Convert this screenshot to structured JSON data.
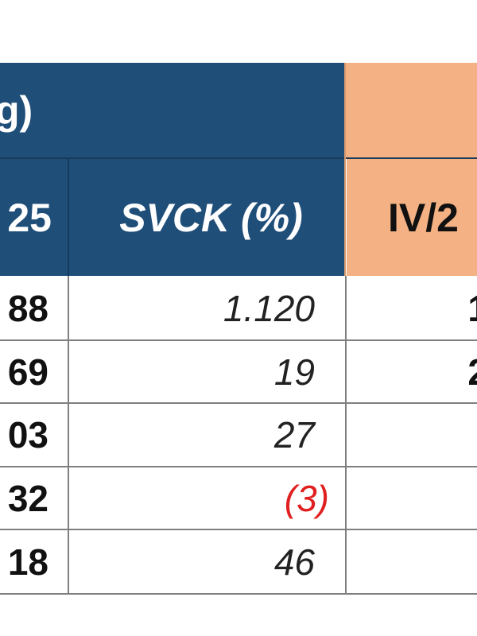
{
  "header": {
    "group_left_partial": "g)",
    "col_left_partial": "25",
    "col_svck": "SVCK (%)",
    "col_right_partial": "IV/2"
  },
  "rows": [
    {
      "left": "88",
      "svck": "1.120",
      "right": "1",
      "negative": false
    },
    {
      "left": "69",
      "svck": "19",
      "right": "2",
      "negative": false
    },
    {
      "left": "03",
      "svck": "27",
      "right": "",
      "negative": false
    },
    {
      "left": "32",
      "svck": "(3)",
      "right": "",
      "negative": true
    },
    {
      "left": "18",
      "svck": "46",
      "right": "",
      "negative": false
    }
  ],
  "colors": {
    "header_blue": "#1f4e79",
    "header_orange": "#f4b183",
    "negative": "#e02020"
  }
}
